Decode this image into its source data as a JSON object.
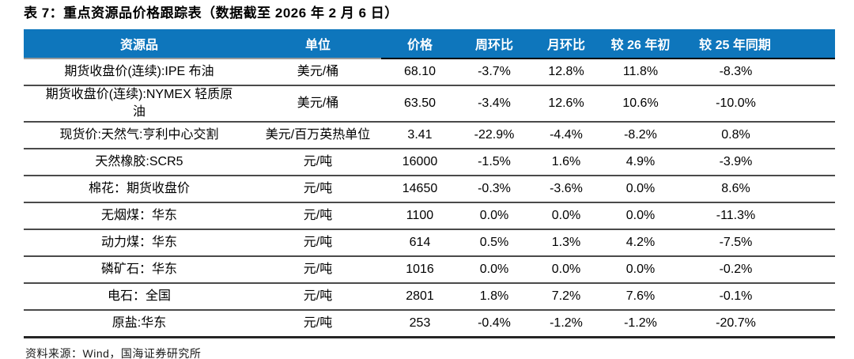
{
  "title": "表 7：重点资源品价格跟踪表（数据截至 2026 年 2 月 6 日）",
  "table": {
    "columns": [
      "资源品",
      "单位",
      "价格",
      "周环比",
      "月环比",
      "较 26 年初",
      "较 25 年同期"
    ],
    "rows": [
      [
        "期货收盘价(连续):IPE 布油",
        "美元/桶",
        "68.10",
        "-3.7%",
        "12.8%",
        "11.8%",
        "-8.3%"
      ],
      [
        "期货收盘价(连续):NYMEX 轻质原\n油",
        "美元/桶",
        "63.50",
        "-3.4%",
        "12.6%",
        "10.6%",
        "-10.0%"
      ],
      [
        "现货价:天然气:亨利中心交割",
        "美元/百万英热单位",
        "3.41",
        "-22.9%",
        "-4.4%",
        "-8.2%",
        "0.8%"
      ],
      [
        "天然橡胶:SCR5",
        "元/吨",
        "16000",
        "-1.5%",
        "1.6%",
        "4.9%",
        "-3.9%"
      ],
      [
        "棉花：期货收盘价",
        "元/吨",
        "14650",
        "-0.3%",
        "-3.6%",
        "0.0%",
        "8.6%"
      ],
      [
        "无烟煤：华东",
        "元/吨",
        "1100",
        "0.0%",
        "0.0%",
        "0.0%",
        "-11.3%"
      ],
      [
        "动力煤：华东",
        "元/吨",
        "614",
        "0.5%",
        "1.3%",
        "4.2%",
        "-7.5%"
      ],
      [
        "磷矿石：华东",
        "元/吨",
        "1016",
        "0.0%",
        "0.0%",
        "0.0%",
        "-0.2%"
      ],
      [
        "电石：全国",
        "元/吨",
        "2801",
        "1.8%",
        "7.2%",
        "7.6%",
        "-0.1%"
      ],
      [
        "原盐:华东",
        "元/吨",
        "253",
        "-0.4%",
        "-1.2%",
        "-1.2%",
        "-20.7%"
      ]
    ]
  },
  "source": "资料来源：Wind，国海证券研究所",
  "colors": {
    "header_bg": "#0E76BC",
    "header_text": "#FFFFFF",
    "row_separator": "#4A4A4A",
    "bottom_rule": "#262626"
  }
}
